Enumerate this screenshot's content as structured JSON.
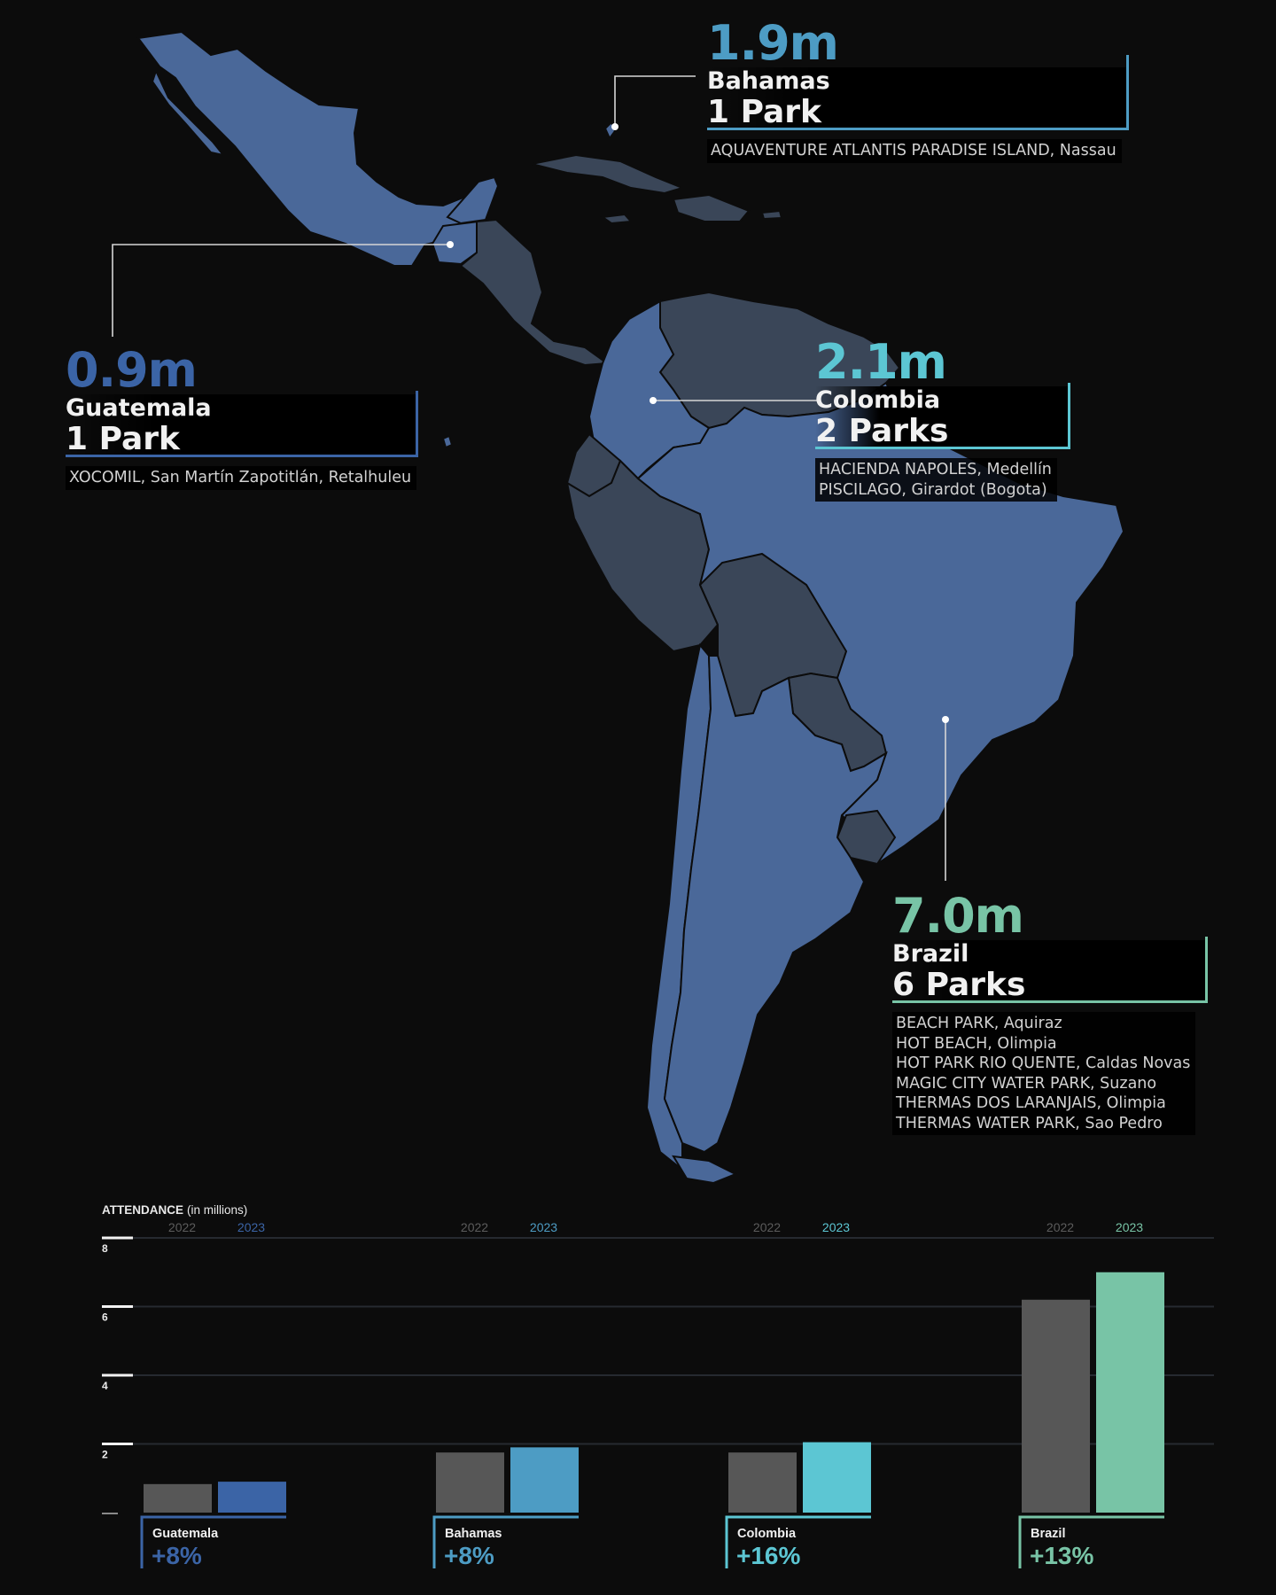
{
  "colors": {
    "background": "#0c0c0c",
    "highlight_land": "#4a6899",
    "other_land": "#3a4658",
    "bar_2022": "#575757",
    "guatemala": "#3b64a6",
    "bahamas": "#4d9cc4",
    "colombia": "#5cc6d3",
    "brazil": "#78c4a6"
  },
  "callouts": {
    "bahamas": {
      "value": "1.9m",
      "country": "Bahamas",
      "parks": "1 Park",
      "venues": [
        "AQUAVENTURE ATLANTIS PARADISE ISLAND, Nassau"
      ]
    },
    "guatemala": {
      "value": "0.9m",
      "country": "Guatemala",
      "parks": "1 Park",
      "venues": [
        "XOCOMIL, San Martín Zapotitlán, Retalhuleu"
      ]
    },
    "colombia": {
      "value": "2.1m",
      "country": "Colombia",
      "parks": "2 Parks",
      "venues": [
        "HACIENDA NAPOLES, Medellín",
        "PISCILAGO, Girardot (Bogota)"
      ]
    },
    "brazil": {
      "value": "7.0m",
      "country": "Brazil",
      "parks": "6 Parks",
      "venues": [
        "BEACH PARK, Aquiraz",
        "HOT BEACH, Olimpia",
        "HOT PARK RIO QUENTE, Caldas Novas",
        "MAGIC CITY WATER PARK, Suzano",
        "THERMAS DOS LARANJAIS, Olimpia",
        "THERMAS WATER PARK, Sao Pedro"
      ]
    }
  },
  "chart_data": {
    "type": "bar",
    "title": "ATTENDANCE",
    "title_note": "(in millions)",
    "ylim": [
      0,
      8
    ],
    "yticks": [
      "8",
      "6",
      "4",
      "2"
    ],
    "years": [
      "2022",
      "2023"
    ],
    "grid": true,
    "groups": [
      {
        "name": "Guatemala",
        "change": "+8%",
        "v2022": 0.83,
        "v2023": 0.9
      },
      {
        "name": "Bahamas",
        "change": "+8%",
        "v2022": 1.75,
        "v2023": 1.9
      },
      {
        "name": "Colombia",
        "change": "+16%",
        "v2022": 1.75,
        "v2023": 2.05
      },
      {
        "name": "Brazil",
        "change": "+13%",
        "v2022": 6.2,
        "v2023": 7.0
      }
    ]
  }
}
